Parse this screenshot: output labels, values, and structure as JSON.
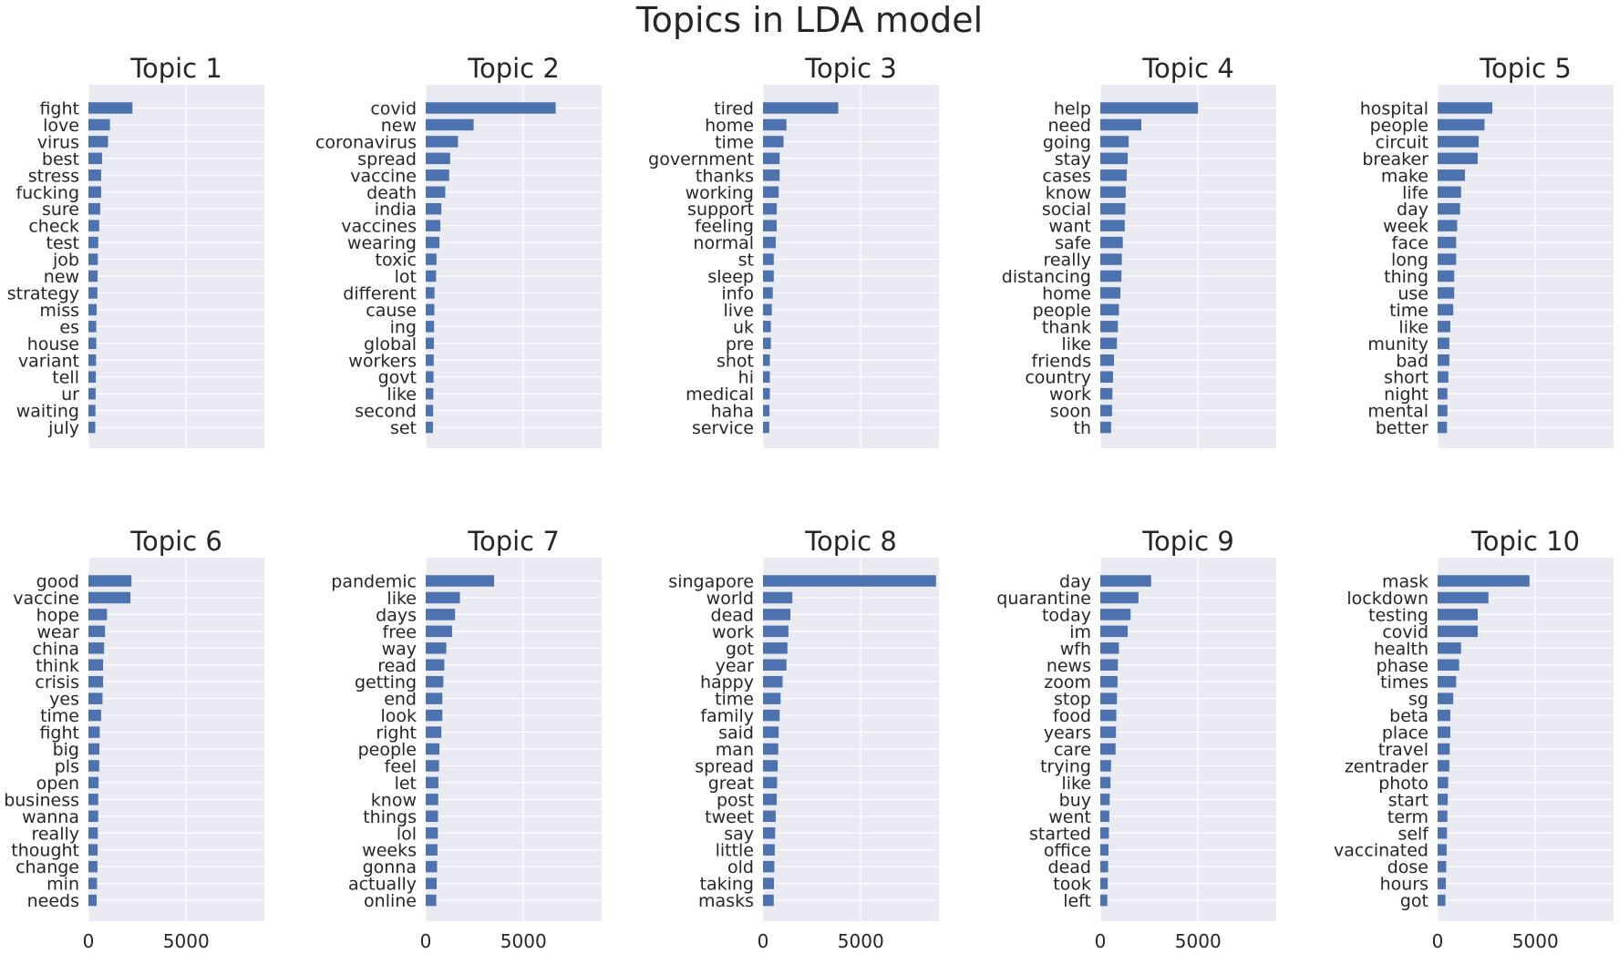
{
  "figure_title": "Topics in LDA model",
  "chart_data": {
    "type": "bar",
    "orientation": "horizontal",
    "xlim": [
      0,
      9000
    ],
    "xticks": [
      0,
      5000
    ],
    "grid": true,
    "bar_color": "#4c72b0",
    "panel_bg": "#eaeaf2",
    "grid_color": "#ffffff",
    "panels": [
      {
        "title": "Topic 1",
        "categories": [
          "fight",
          "love",
          "virus",
          "best",
          "stress",
          "fucking",
          "sure",
          "check",
          "test",
          "job",
          "new",
          "strategy",
          "miss",
          "es",
          "house",
          "variant",
          "tell",
          "ur",
          "waiting",
          "july"
        ],
        "values": [
          2250,
          1100,
          1000,
          700,
          650,
          650,
          600,
          550,
          500,
          480,
          470,
          460,
          420,
          400,
          400,
          390,
          380,
          370,
          360,
          350
        ]
      },
      {
        "title": "Topic 2",
        "categories": [
          "covid",
          "new",
          "coronavirus",
          "spread",
          "vaccine",
          "death",
          "india",
          "vaccines",
          "wearing",
          "toxic",
          "lot",
          "different",
          "cause",
          "ing",
          "global",
          "workers",
          "govt",
          "like",
          "second",
          "set"
        ],
        "values": [
          6650,
          2450,
          1650,
          1250,
          1200,
          1000,
          800,
          750,
          700,
          550,
          530,
          450,
          440,
          430,
          420,
          410,
          400,
          390,
          380,
          370
        ]
      },
      {
        "title": "Topic 3",
        "categories": [
          "tired",
          "home",
          "time",
          "government",
          "thanks",
          "working",
          "support",
          "feeling",
          "normal",
          "st",
          "sleep",
          "info",
          "live",
          "uk",
          "pre",
          "shot",
          "hi",
          "medical",
          "haha",
          "service"
        ],
        "values": [
          3850,
          1200,
          1050,
          850,
          850,
          800,
          700,
          700,
          650,
          550,
          550,
          500,
          450,
          400,
          400,
          350,
          350,
          350,
          330,
          320
        ]
      },
      {
        "title": "Topic 4",
        "categories": [
          "help",
          "need",
          "going",
          "stay",
          "cases",
          "know",
          "social",
          "want",
          "safe",
          "really",
          "distancing",
          "home",
          "people",
          "thank",
          "like",
          "friends",
          "country",
          "work",
          "soon",
          "th"
        ],
        "values": [
          5000,
          2100,
          1450,
          1400,
          1350,
          1300,
          1280,
          1250,
          1150,
          1100,
          1080,
          1030,
          950,
          900,
          850,
          700,
          650,
          620,
          600,
          550
        ]
      },
      {
        "title": "Topic 5",
        "categories": [
          "hospital",
          "people",
          "circuit",
          "breaker",
          "make",
          "life",
          "day",
          "week",
          "face",
          "long",
          "thing",
          "use",
          "time",
          "like",
          "munity",
          "bad",
          "short",
          "night",
          "mental",
          "better"
        ],
        "values": [
          2800,
          2400,
          2100,
          2050,
          1400,
          1200,
          1150,
          1000,
          950,
          950,
          850,
          850,
          800,
          650,
          600,
          600,
          550,
          500,
          500,
          480
        ]
      },
      {
        "title": "Topic 6",
        "categories": [
          "good",
          "vaccine",
          "hope",
          "wear",
          "china",
          "think",
          "crisis",
          "yes",
          "time",
          "fight",
          "big",
          "pls",
          "open",
          "business",
          "wanna",
          "really",
          "thought",
          "change",
          "min",
          "needs"
        ],
        "values": [
          2200,
          2150,
          950,
          850,
          800,
          750,
          750,
          720,
          650,
          580,
          560,
          550,
          520,
          500,
          500,
          480,
          470,
          460,
          440,
          420
        ]
      },
      {
        "title": "Topic 7",
        "categories": [
          "pandemic",
          "like",
          "days",
          "free",
          "way",
          "read",
          "getting",
          "end",
          "look",
          "right",
          "people",
          "feel",
          "let",
          "know",
          "things",
          "lol",
          "weeks",
          "gonna",
          "actually",
          "online"
        ],
        "values": [
          3500,
          1750,
          1500,
          1350,
          1050,
          950,
          900,
          850,
          850,
          800,
          700,
          680,
          650,
          640,
          630,
          620,
          600,
          580,
          560,
          540
        ]
      },
      {
        "title": "Topic 8",
        "categories": [
          "singapore",
          "world",
          "dead",
          "work",
          "got",
          "year",
          "happy",
          "time",
          "family",
          "said",
          "man",
          "spread",
          "great",
          "post",
          "tweet",
          "say",
          "little",
          "old",
          "taking",
          "masks"
        ],
        "values": [
          8850,
          1500,
          1400,
          1300,
          1250,
          1200,
          1000,
          900,
          850,
          800,
          780,
          750,
          720,
          700,
          650,
          620,
          600,
          580,
          560,
          550
        ]
      },
      {
        "title": "Topic 9",
        "categories": [
          "day",
          "quarantine",
          "today",
          "im",
          "wfh",
          "news",
          "zoom",
          "stop",
          "food",
          "years",
          "care",
          "trying",
          "like",
          "buy",
          "went",
          "started",
          "office",
          "dead",
          "took",
          "left"
        ],
        "values": [
          2600,
          1950,
          1550,
          1400,
          950,
          900,
          880,
          850,
          820,
          800,
          780,
          550,
          520,
          480,
          460,
          440,
          420,
          400,
          380,
          360
        ]
      },
      {
        "title": "Topic 10",
        "categories": [
          "mask",
          "lockdown",
          "testing",
          "covid",
          "health",
          "phase",
          "times",
          "sg",
          "beta",
          "place",
          "travel",
          "zentrader",
          "photo",
          "start",
          "term",
          "self",
          "vaccinated",
          "dose",
          "hours",
          "got"
        ],
        "values": [
          4700,
          2600,
          2050,
          2050,
          1200,
          1100,
          950,
          800,
          650,
          650,
          620,
          600,
          540,
          520,
          500,
          480,
          460,
          440,
          420,
          400
        ]
      }
    ]
  }
}
